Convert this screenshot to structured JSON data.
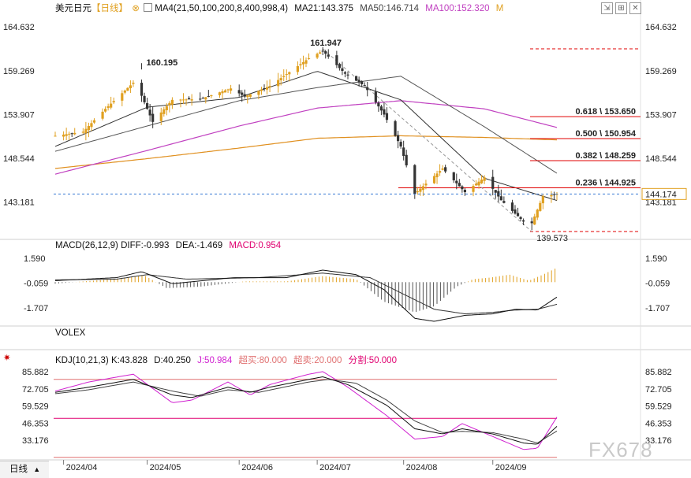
{
  "app": {
    "symbol": "美元日元",
    "period": "【日线】",
    "watermark": "FX678",
    "period_tab": "日线",
    "last_price_label": "144.174"
  },
  "indicators": {
    "ma_header": "MA4(21,50,100,200,8,400,998,4)",
    "ma21": "MA21:143.375",
    "ma50": "MA50:146.714",
    "ma100": "MA100:152.320",
    "ma_more": "M",
    "macd_name": "MACD(26,12,9)",
    "macd_diff": "DIFF:-0.993",
    "macd_dea": "DEA:-1.469",
    "macd_val": "MACD:0.954",
    "volex": "VOLEX",
    "kdj_name": "KDJ(10,21,3)",
    "kdj_k": "K:43.828",
    "kdj_d": "D:40.250",
    "kdj_j": "J:50.984",
    "kdj_ob": "超买:80.000",
    "kdj_os": "超卖:20.000",
    "kdj_split": "分割:50.000"
  },
  "colors": {
    "up": "#e0a020",
    "down": "#333333",
    "ma21": "#333333",
    "ma50": "#555555",
    "ma100": "#c040c0",
    "ma200": "#e09020",
    "fib": "#e00000",
    "macd": "#e00070",
    "kdj_k": "#111111",
    "kdj_j": "#d020d0"
  },
  "chart_data": [
    {
      "type": "candlestick",
      "title": "美元日元【日线】",
      "x_tick_labels": [
        "2024/04",
        "2024/05",
        "2024/06",
        "2024/07",
        "2024/08",
        "2024/09"
      ],
      "y_ticks": [
        164.632,
        159.269,
        153.907,
        148.544,
        143.181
      ],
      "ylim": [
        139.0,
        166.0
      ],
      "last_price": 144.174,
      "annotations": [
        {
          "label": "160.195",
          "value": 160.195
        },
        {
          "label": "161.947",
          "value": 161.947
        },
        {
          "label": "139.573",
          "value": 139.573
        }
      ],
      "fibonacci": [
        {
          "label": "0.618 \\ 153.650",
          "value": 153.65
        },
        {
          "label": "0.500 \\ 150.954",
          "value": 150.954
        },
        {
          "label": "0.382 \\ 148.259",
          "value": 148.259
        },
        {
          "label": "0.236 \\ 144.925",
          "value": 144.925
        }
      ],
      "fib_top": 161.947,
      "fib_bottom": 139.573,
      "price_keypoints": [
        [
          "2024/03/29",
          151.3
        ],
        [
          "2024/04/08",
          151.8
        ],
        [
          "2024/04/16",
          154.6
        ],
        [
          "2024/04/26",
          157.8
        ],
        [
          "2024/04/29",
          156.2
        ],
        [
          "2024/05/03",
          153.0
        ],
        [
          "2024/05/10",
          155.7
        ],
        [
          "2024/05/20",
          155.8
        ],
        [
          "2024/05/31",
          157.1
        ],
        [
          "2024/06/05",
          156.1
        ],
        [
          "2024/06/14",
          157.4
        ],
        [
          "2024/06/28",
          160.8
        ],
        [
          "2024/07/03",
          161.7
        ],
        [
          "2024/07/11",
          158.9
        ],
        [
          "2024/07/18",
          157.4
        ],
        [
          "2024/07/25",
          153.9
        ],
        [
          "2024/07/31",
          150.0
        ],
        [
          "2024/08/05",
          144.2
        ],
        [
          "2024/08/15",
          147.3
        ],
        [
          "2024/08/23",
          144.4
        ],
        [
          "2024/08/30",
          146.2
        ],
        [
          "2024/09/05",
          143.4
        ],
        [
          "2024/09/13",
          140.8
        ],
        [
          "2024/09/16",
          140.6
        ],
        [
          "2024/09/20",
          143.9
        ],
        [
          "2024/09/25",
          144.17
        ]
      ],
      "ma_keypoints": {
        "MA21": [
          [
            "2024/03/29",
            150.0
          ],
          [
            "2024/05/01",
            154.8
          ],
          [
            "2024/06/03",
            156.0
          ],
          [
            "2024/07/01",
            159.2
          ],
          [
            "2024/07/31",
            155.7
          ],
          [
            "2024/08/30",
            146.1
          ],
          [
            "2024/09/25",
            143.375
          ]
        ],
        "MA50": [
          [
            "2024/03/29",
            149.4
          ],
          [
            "2024/05/01",
            152.5
          ],
          [
            "2024/06/03",
            155.6
          ],
          [
            "2024/07/01",
            157.2
          ],
          [
            "2024/07/31",
            158.6
          ],
          [
            "2024/08/30",
            152.4
          ],
          [
            "2024/09/25",
            146.714
          ]
        ],
        "MA100": [
          [
            "2024/03/29",
            146.6
          ],
          [
            "2024/05/01",
            149.5
          ],
          [
            "2024/06/03",
            152.5
          ],
          [
            "2024/07/01",
            154.7
          ],
          [
            "2024/07/31",
            155.6
          ],
          [
            "2024/08/30",
            154.6
          ],
          [
            "2024/09/25",
            152.32
          ]
        ],
        "MA200": [
          [
            "2024/03/29",
            147.3
          ],
          [
            "2024/05/01",
            148.5
          ],
          [
            "2024/06/03",
            149.8
          ],
          [
            "2024/07/01",
            151.0
          ],
          [
            "2024/07/31",
            151.3
          ],
          [
            "2024/08/30",
            151.1
          ],
          [
            "2024/09/25",
            150.8
          ]
        ]
      }
    },
    {
      "type": "macd",
      "title": "MACD(26,12,9)",
      "y_ticks": [
        1.59,
        -0.059,
        -1.707
      ],
      "ylim": [
        -2.7,
        2.0
      ],
      "diff_keypoints": [
        [
          "2024/03/29",
          0.1
        ],
        [
          "2024/04/20",
          0.3
        ],
        [
          "2024/04/29",
          0.7
        ],
        [
          "2024/05/10",
          -0.1
        ],
        [
          "2024/06/01",
          0.3
        ],
        [
          "2024/06/20",
          0.3
        ],
        [
          "2024/07/03",
          0.8
        ],
        [
          "2024/07/15",
          0.5
        ],
        [
          "2024/07/25",
          -0.5
        ],
        [
          "2024/08/05",
          -2.4
        ],
        [
          "2024/08/12",
          -2.6
        ],
        [
          "2024/08/23",
          -2.2
        ],
        [
          "2024/09/02",
          -2.1
        ],
        [
          "2024/09/10",
          -1.8
        ],
        [
          "2024/09/18",
          -1.85
        ],
        [
          "2024/09/25",
          -0.993
        ]
      ],
      "dea_keypoints": [
        [
          "2024/03/29",
          0.15
        ],
        [
          "2024/04/20",
          0.2
        ],
        [
          "2024/05/01",
          0.5
        ],
        [
          "2024/05/15",
          0.2
        ],
        [
          "2024/06/10",
          0.3
        ],
        [
          "2024/07/03",
          0.6
        ],
        [
          "2024/07/20",
          0.3
        ],
        [
          "2024/08/01",
          -0.8
        ],
        [
          "2024/08/12",
          -1.8
        ],
        [
          "2024/08/23",
          -2.1
        ],
        [
          "2024/09/02",
          -2.0
        ],
        [
          "2024/09/10",
          -1.85
        ],
        [
          "2024/09/18",
          -1.8
        ],
        [
          "2024/09/25",
          -1.469
        ]
      ],
      "hist_keypoints": [
        [
          "2024/03/29",
          -0.1
        ],
        [
          "2024/04/22",
          0.25
        ],
        [
          "2024/04/30",
          0.45
        ],
        [
          "2024/05/08",
          -0.4
        ],
        [
          "2024/05/20",
          -0.3
        ],
        [
          "2024/06/05",
          0.05
        ],
        [
          "2024/06/20",
          0.05
        ],
        [
          "2024/07/03",
          0.4
        ],
        [
          "2024/07/15",
          0.2
        ],
        [
          "2024/07/25",
          -1.3
        ],
        [
          "2024/08/05",
          -2.0
        ],
        [
          "2024/08/12",
          -1.6
        ],
        [
          "2024/08/20",
          -0.3
        ],
        [
          "2024/08/26",
          0.2
        ],
        [
          "2024/09/01",
          0.3
        ],
        [
          "2024/09/08",
          0.5
        ],
        [
          "2024/09/15",
          0.1
        ],
        [
          "2024/09/20",
          0.5
        ],
        [
          "2024/09/25",
          0.954
        ]
      ]
    },
    {
      "type": "kdj",
      "title": "KDJ(10,21,3)",
      "y_ticks": [
        85.882,
        72.705,
        59.529,
        46.353,
        33.176
      ],
      "ylim": [
        18,
        92
      ],
      "levels": {
        "overbought": 80.0,
        "oversold": 20.0,
        "split": 50.0
      },
      "k_keypoints": [
        [
          "2024/03/29",
          70
        ],
        [
          "2024/04/10",
          74
        ],
        [
          "2024/04/26",
          80
        ],
        [
          "2024/05/10",
          68
        ],
        [
          "2024/05/17",
          66
        ],
        [
          "2024/05/30",
          74
        ],
        [
          "2024/06/07",
          70
        ],
        [
          "2024/06/14",
          74
        ],
        [
          "2024/06/28",
          80
        ],
        [
          "2024/07/03",
          82
        ],
        [
          "2024/07/12",
          76
        ],
        [
          "2024/07/26",
          60
        ],
        [
          "2024/08/05",
          42
        ],
        [
          "2024/08/15",
          38
        ],
        [
          "2024/08/22",
          42
        ],
        [
          "2024/09/02",
          38
        ],
        [
          "2024/09/13",
          31
        ],
        [
          "2024/09/18",
          30
        ],
        [
          "2024/09/25",
          43.828
        ]
      ],
      "d_keypoints": [
        [
          "2024/03/29",
          69
        ],
        [
          "2024/04/10",
          72
        ],
        [
          "2024/04/26",
          78
        ],
        [
          "2024/05/10",
          71
        ],
        [
          "2024/05/20",
          67
        ],
        [
          "2024/05/30",
          72
        ],
        [
          "2024/06/10",
          70
        ],
        [
          "2024/06/28",
          78
        ],
        [
          "2024/07/05",
          80
        ],
        [
          "2024/07/15",
          77
        ],
        [
          "2024/07/26",
          64
        ],
        [
          "2024/08/05",
          48
        ],
        [
          "2024/08/15",
          39
        ],
        [
          "2024/08/22",
          40
        ],
        [
          "2024/09/02",
          39
        ],
        [
          "2024/09/13",
          34
        ],
        [
          "2024/09/18",
          31
        ],
        [
          "2024/09/25",
          40.25
        ]
      ],
      "j_keypoints": [
        [
          "2024/03/29",
          71
        ],
        [
          "2024/04/10",
          78
        ],
        [
          "2024/04/26",
          84
        ],
        [
          "2024/05/10",
          62
        ],
        [
          "2024/05/17",
          64
        ],
        [
          "2024/05/30",
          78
        ],
        [
          "2024/06/07",
          68
        ],
        [
          "2024/06/14",
          76
        ],
        [
          "2024/06/28",
          84
        ],
        [
          "2024/07/03",
          86
        ],
        [
          "2024/07/12",
          74
        ],
        [
          "2024/07/26",
          52
        ],
        [
          "2024/08/05",
          34
        ],
        [
          "2024/08/15",
          36
        ],
        [
          "2024/08/22",
          46
        ],
        [
          "2024/09/02",
          36
        ],
        [
          "2024/09/13",
          26
        ],
        [
          "2024/09/18",
          27
        ],
        [
          "2024/09/25",
          50.984
        ]
      ]
    }
  ]
}
